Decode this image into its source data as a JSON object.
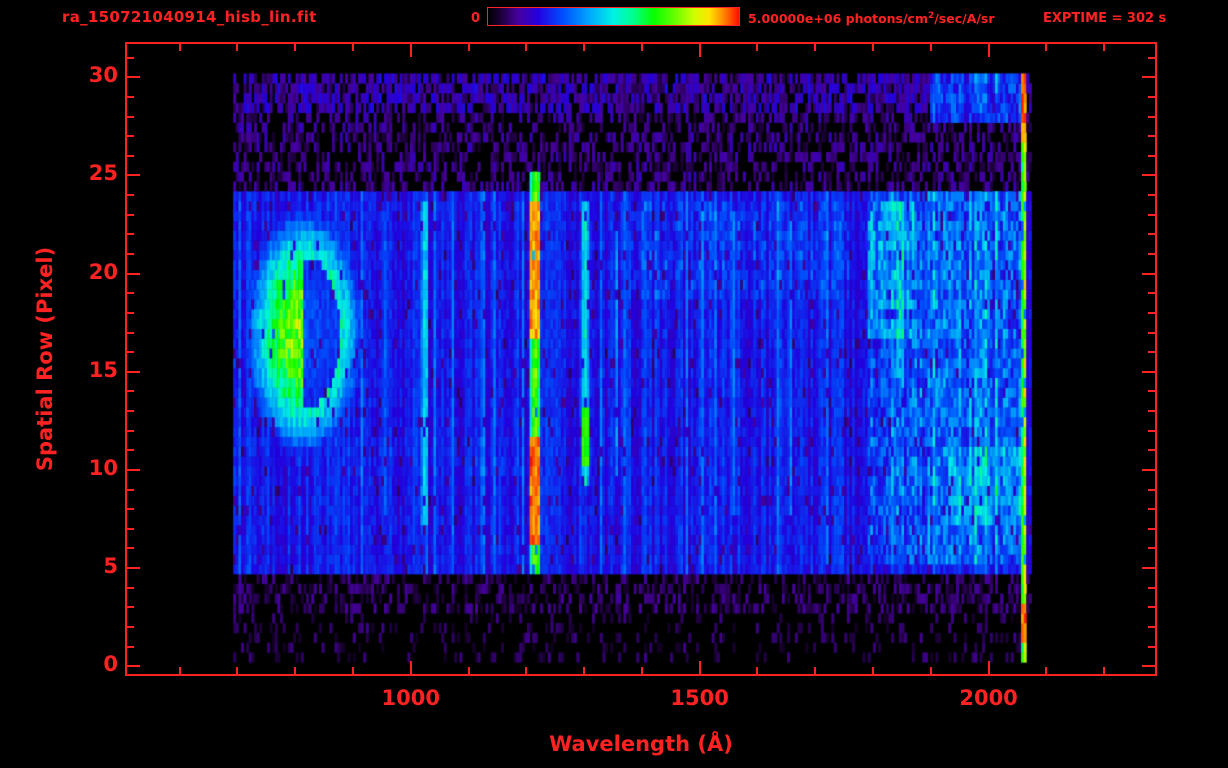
{
  "header": {
    "title": "ra_150721040914_hisb_lin.fit",
    "exptime": "EXPTIME = 302 s",
    "colorbar": {
      "min_label": "0",
      "max_label_prefix": "5.00000e+06 photons/cm",
      "max_label_sup": "2",
      "max_label_suffix": "/sec/A/sr"
    }
  },
  "colors": {
    "accent_red": "#ff2222",
    "background": "#000000",
    "colormap": [
      [
        0,
        "#000000"
      ],
      [
        0.05,
        "#1c0038"
      ],
      [
        0.12,
        "#47009e"
      ],
      [
        0.2,
        "#2400e0"
      ],
      [
        0.3,
        "#0050ff"
      ],
      [
        0.4,
        "#00a4ff"
      ],
      [
        0.5,
        "#00f2e4"
      ],
      [
        0.58,
        "#00ff8c"
      ],
      [
        0.66,
        "#06ff00"
      ],
      [
        0.75,
        "#6eff00"
      ],
      [
        0.82,
        "#ccff00"
      ],
      [
        0.88,
        "#ffe600"
      ],
      [
        0.94,
        "#ff8400"
      ],
      [
        1,
        "#ff0c00"
      ]
    ]
  },
  "chart_data": {
    "type": "heatmap",
    "title": "ra_150721040914_hisb_lin.fit",
    "xlabel": "Wavelength (Å)",
    "ylabel": "Spatial Row (Pixel)",
    "xlim": [
      509,
      2288
    ],
    "ylim": [
      -0.4,
      31.7
    ],
    "x_ticks": [
      1000,
      1500,
      2000
    ],
    "x_minor_step": 100,
    "y_ticks": [
      0,
      5,
      10,
      15,
      20,
      25,
      30
    ],
    "y_minor_step": 1,
    "colorbar_range": {
      "min": 0,
      "max": 5000000,
      "units": "photons/cm^2/sec/A/sr"
    },
    "exposure_seconds": 302,
    "data_extent": {
      "x": [
        695,
        2075
      ],
      "rows": [
        0.4,
        30.2
      ]
    },
    "noise": {
      "seed": 20150721,
      "column_spike_prob": 0.08,
      "dropout_prob": 0.05
    },
    "background_rows": [
      {
        "rows": [
          4.6,
          24.4
        ],
        "base": 0.1,
        "column_gain": 0.2,
        "jitter": 0.07
      },
      {
        "rows": [
          24.4,
          28.0
        ],
        "fill_prob": 0.5,
        "min": 0.04,
        "max": 0.16
      },
      {
        "rows": [
          28.0,
          30.2
        ],
        "fill_prob": 0.75,
        "min": 0.06,
        "max": 0.22
      },
      {
        "rows": [
          2.5,
          4.6
        ],
        "fill_prob": 0.45,
        "min": 0.03,
        "max": 0.13
      },
      {
        "rows": [
          0.4,
          2.5
        ],
        "fill_prob": 0.22,
        "min": 0.03,
        "max": 0.11
      }
    ],
    "features": [
      {
        "kind": "blob",
        "x": 815,
        "y": 17,
        "rx": 90,
        "ry": 5.5,
        "intensity": 0.75
      },
      {
        "kind": "vline",
        "x": 955,
        "width": 10,
        "rows": [
          8,
          23
        ],
        "intensity": 0.34
      },
      {
        "kind": "vline",
        "x": 1025,
        "width": 14,
        "rows": [
          7.5,
          23.5
        ],
        "intensity": 0.5
      },
      {
        "kind": "vline",
        "x": 1216,
        "width": 17,
        "rows": [
          5,
          25
        ],
        "intensity": 0.8,
        "cores": [
          {
            "rows": [
              6,
              11.5
            ],
            "intensity": 1.0
          },
          {
            "rows": [
              16.5,
              23.5
            ],
            "intensity": 0.97
          }
        ]
      },
      {
        "kind": "vline",
        "x": 1302,
        "width": 12,
        "rows": [
          9.5,
          23.5
        ],
        "intensity": 0.55,
        "cores": [
          {
            "rows": [
              10,
              13
            ],
            "intensity": 0.72
          }
        ]
      },
      {
        "kind": "vline",
        "x": 1356,
        "width": 8,
        "rows": [
          10,
          22
        ],
        "intensity": 0.4
      },
      {
        "kind": "vline",
        "x": 1560,
        "width": 8,
        "rows": [
          8,
          23
        ],
        "intensity": 0.38
      },
      {
        "kind": "vline",
        "x": 1657,
        "width": 8,
        "rows": [
          8,
          23
        ],
        "intensity": 0.38
      },
      {
        "kind": "band",
        "x": [
          900,
          1200
        ],
        "rows": [
          9.5,
          11.5
        ],
        "intensity": 0.3
      },
      {
        "kind": "band",
        "x": [
          1380,
          1760
        ],
        "rows": [
          18.5,
          23.5
        ],
        "intensity": 0.33
      },
      {
        "kind": "band",
        "x": [
          1790,
          2058
        ],
        "rows": [
          5,
          24
        ],
        "intensity": 0.42
      },
      {
        "kind": "band",
        "x": [
          1790,
          1870
        ],
        "rows": [
          16.5,
          23.5
        ],
        "intensity": 0.55
      },
      {
        "kind": "band",
        "x": [
          1930,
          2055
        ],
        "rows": [
          7,
          11
        ],
        "intensity": 0.5
      },
      {
        "kind": "band",
        "x": [
          1900,
          2058
        ],
        "rows": [
          27.5,
          30.2
        ],
        "intensity": 0.35
      },
      {
        "kind": "vline",
        "x": 2062,
        "width": 9,
        "rows": [
          0.4,
          30.2
        ],
        "intensity": 0.88,
        "cores": [
          {
            "rows": [
              26.5,
              30
            ],
            "intensity": 1.0
          },
          {
            "rows": [
              1,
              3
            ],
            "intensity": 1.0
          }
        ]
      }
    ]
  }
}
